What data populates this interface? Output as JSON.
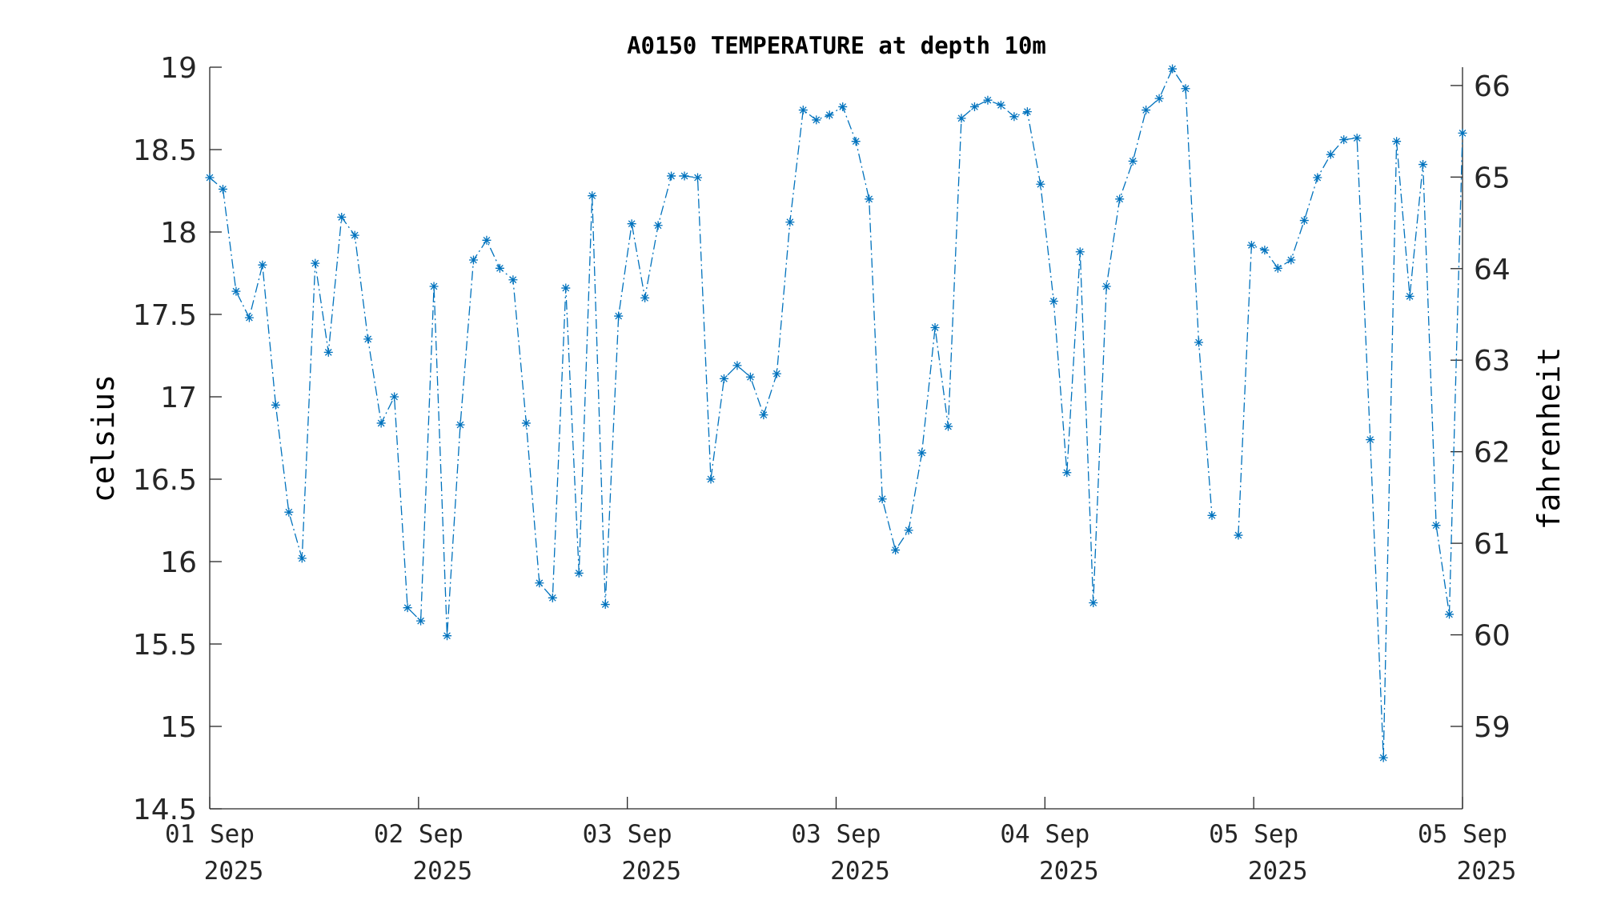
{
  "chart_data": {
    "type": "line",
    "title": "A0150 TEMPERATURE at depth 10m",
    "ylabel": "celsius",
    "y2label": "fahrenheit",
    "ylim": [
      14.5,
      19
    ],
    "y2lim": [
      58.1,
      66.2
    ],
    "yticks": [
      "19",
      "18.5",
      "18",
      "17.5",
      "17",
      "16.5",
      "16",
      "15.5",
      "15",
      "14.5"
    ],
    "y2ticks": [
      "66",
      "65",
      "64",
      "63",
      "62",
      "61",
      "60",
      "59"
    ],
    "xticks": [
      {
        "line1": "01 Sep",
        "line2": "2025"
      },
      {
        "line1": "02 Sep",
        "line2": "2025"
      },
      {
        "line1": "03 Sep",
        "line2": "2025"
      },
      {
        "line1": "03 Sep",
        "line2": "2025"
      },
      {
        "line1": "04 Sep",
        "line2": "2025"
      },
      {
        "line1": "05 Sep",
        "line2": "2025"
      },
      {
        "line1": "05 Sep",
        "line2": "2025"
      }
    ],
    "grid": false,
    "series_color": "#0072bd",
    "line_style": "dash-dot",
    "marker": "asterisk",
    "series": [
      {
        "values": [
          18.33,
          18.26,
          17.64,
          17.48,
          17.8,
          16.95,
          16.3,
          16.02,
          17.81,
          17.27,
          18.09,
          17.98,
          17.35,
          16.84,
          17.0,
          15.72,
          15.64,
          17.67,
          15.55,
          16.83,
          17.83,
          17.95,
          17.78,
          17.71,
          16.84,
          15.87,
          15.78,
          17.66,
          15.93,
          18.22,
          15.74,
          17.49,
          18.05,
          17.6,
          18.04,
          18.34,
          18.34,
          18.33,
          16.5,
          17.11,
          17.19,
          17.12,
          16.89,
          17.14,
          18.06,
          18.74,
          18.68,
          18.71,
          18.76,
          18.55,
          18.2,
          16.38,
          16.07,
          16.19,
          16.66,
          17.42,
          16.82,
          18.69,
          18.76,
          18.8,
          18.77,
          18.7,
          18.73,
          18.29,
          17.58,
          16.54,
          17.88,
          15.75,
          17.67,
          18.2,
          18.43,
          18.74,
          18.81,
          18.99,
          18.87,
          17.33,
          16.28,
          null,
          16.16,
          17.92,
          17.89,
          17.78,
          17.83,
          18.07,
          18.33,
          18.47,
          18.56,
          18.57,
          16.74,
          14.81,
          18.55,
          17.61,
          18.41,
          16.22,
          15.68,
          18.6
        ]
      }
    ]
  }
}
